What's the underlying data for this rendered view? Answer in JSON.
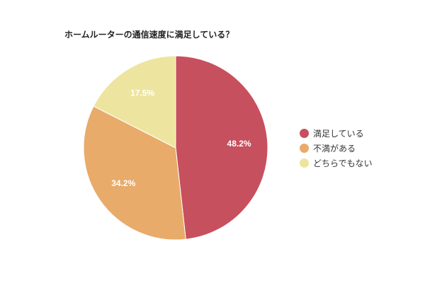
{
  "chart_data": {
    "type": "pie",
    "title": "ホームルーターの通信速度に満足している？",
    "categories": [
      "満足している",
      "不満がある",
      "どちらでもない"
    ],
    "values": [
      48.2,
      34.2,
      17.5
    ],
    "labels": [
      "48.2%",
      "34.2%",
      "17.5%"
    ],
    "colors": [
      "#c7505e",
      "#e8ab69",
      "#ede59f"
    ],
    "start_angle_deg": 0,
    "direction": "clockwise",
    "legend_position": "right"
  }
}
